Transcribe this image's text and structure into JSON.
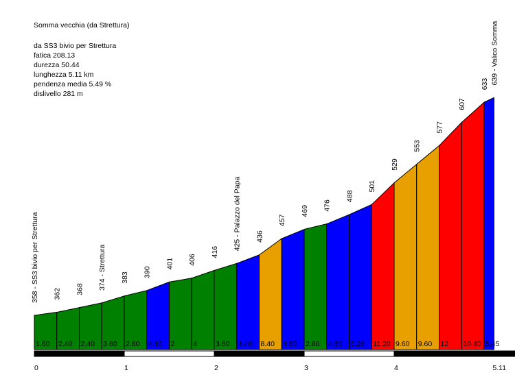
{
  "colors": {
    "green": "#008000",
    "blue": "#0000ff",
    "orange": "#e8a000",
    "red": "#ff0000",
    "scale_dark": "#000000",
    "scale_light": "#ffffff"
  },
  "info": {
    "title": "Somma vecchia (da Strettura)",
    "start": "da SS3 bivio per Strettura",
    "fatica": "fatica 208.13",
    "durezza": "durezza 50.44",
    "lunghezza": "lunghezza 5.11 km",
    "pendenza": "pendenza media 5.49 %",
    "dislivello": "dislivello 281 m"
  },
  "chart_data": {
    "type": "area",
    "title": "Somma vecchia (da Strettura)",
    "xlabel": "",
    "ylabel": "",
    "x_unit": "km",
    "xlim": [
      0,
      5.11
    ],
    "x_ticks": [
      "0",
      "1",
      "2",
      "3",
      "4",
      "5.11"
    ],
    "x_tick_values": [
      0,
      1,
      2,
      3,
      4,
      5.11
    ],
    "grid": false,
    "points": [
      {
        "x": 0,
        "elev": 358,
        "label": "358 - SS3 bivio per Strettura"
      },
      {
        "x": 0.25,
        "elev": 362,
        "label": "362"
      },
      {
        "x": 0.5,
        "elev": 368,
        "label": "368"
      },
      {
        "x": 0.75,
        "elev": 374,
        "label": "374 - Strettura"
      },
      {
        "x": 1.0,
        "elev": 383,
        "label": "383"
      },
      {
        "x": 1.25,
        "elev": 390,
        "label": "390"
      },
      {
        "x": 1.5,
        "elev": 401,
        "label": "401"
      },
      {
        "x": 1.75,
        "elev": 406,
        "label": "406"
      },
      {
        "x": 2.0,
        "elev": 416,
        "label": "416"
      },
      {
        "x": 2.25,
        "elev": 425,
        "label": "425 - Palazzo del Papa"
      },
      {
        "x": 2.5,
        "elev": 436,
        "label": "436"
      },
      {
        "x": 2.75,
        "elev": 457,
        "label": "457"
      },
      {
        "x": 3.0,
        "elev": 469,
        "label": "469"
      },
      {
        "x": 3.25,
        "elev": 476,
        "label": "476"
      },
      {
        "x": 3.5,
        "elev": 488,
        "label": "488"
      },
      {
        "x": 3.75,
        "elev": 501,
        "label": "501"
      },
      {
        "x": 4.0,
        "elev": 529,
        "label": "529"
      },
      {
        "x": 4.25,
        "elev": 553,
        "label": "553"
      },
      {
        "x": 4.5,
        "elev": 577,
        "label": "577"
      },
      {
        "x": 4.75,
        "elev": 607,
        "label": "607"
      },
      {
        "x": 5.0,
        "elev": 633,
        "label": "633"
      },
      {
        "x": 5.11,
        "elev": 639,
        "label": "639 - Valico Somma"
      }
    ],
    "segments": [
      {
        "grade": "1.60",
        "color": "green"
      },
      {
        "grade": "2.40",
        "color": "green"
      },
      {
        "grade": "2.40",
        "color": "green"
      },
      {
        "grade": "3.60",
        "color": "green"
      },
      {
        "grade": "2.80",
        "color": "green"
      },
      {
        "grade": "4.40",
        "color": "blue"
      },
      {
        "grade": "2",
        "color": "green"
      },
      {
        "grade": "4",
        "color": "green"
      },
      {
        "grade": "3.60",
        "color": "green"
      },
      {
        "grade": "4.40",
        "color": "blue"
      },
      {
        "grade": "8.40",
        "color": "orange"
      },
      {
        "grade": "4.80",
        "color": "blue"
      },
      {
        "grade": "2.80",
        "color": "green"
      },
      {
        "grade": "4.80",
        "color": "blue"
      },
      {
        "grade": "5.20",
        "color": "blue"
      },
      {
        "grade": "11.20",
        "color": "red"
      },
      {
        "grade": "9.60",
        "color": "orange"
      },
      {
        "grade": "9.60",
        "color": "orange"
      },
      {
        "grade": "12",
        "color": "red"
      },
      {
        "grade": "10.40",
        "color": "red"
      },
      {
        "grade": "5.45",
        "color": "blue"
      }
    ]
  }
}
